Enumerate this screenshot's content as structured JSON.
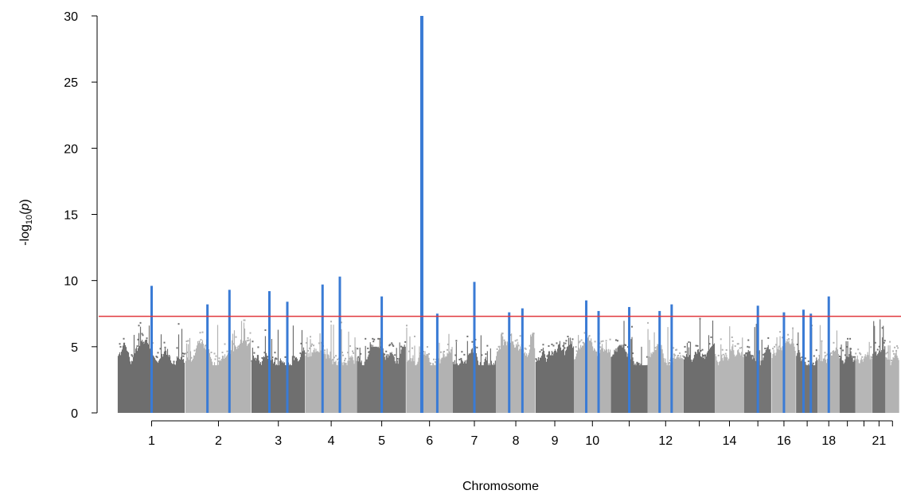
{
  "chart_data": {
    "type": "scatter",
    "subtype": "manhattan",
    "title": "",
    "xlabel": "Chromosome",
    "ylabel": "-log10(p)",
    "ylim": [
      0,
      30
    ],
    "yticks": [
      0,
      5,
      10,
      15,
      20,
      25,
      30
    ],
    "x_tick_labels": [
      "1",
      "2",
      "3",
      "4",
      "5",
      "6",
      "7",
      "8",
      "9",
      "10",
      "12",
      "14",
      "16",
      "18",
      "21"
    ],
    "significance_threshold": 7.3,
    "colors": {
      "chrom_odd": "#6f6f6f",
      "chrom_even": "#b3b3b3",
      "highlight": "#3a7bd5",
      "threshold": "#e0393e"
    },
    "chromosomes": [
      {
        "chr": "1",
        "max": 6.8
      },
      {
        "chr": "2",
        "max": 7.0
      },
      {
        "chr": "3",
        "max": 6.6
      },
      {
        "chr": "4",
        "max": 6.9
      },
      {
        "chr": "5",
        "max": 5.6
      },
      {
        "chr": "6",
        "max": 6.6
      },
      {
        "chr": "7",
        "max": 6.2
      },
      {
        "chr": "8",
        "max": 6.0
      },
      {
        "chr": "9",
        "max": 5.8
      },
      {
        "chr": "10",
        "max": 6.4
      },
      {
        "chr": "11",
        "max": 7.0
      },
      {
        "chr": "12",
        "max": 6.8
      },
      {
        "chr": "13",
        "max": 7.4
      },
      {
        "chr": "14",
        "max": 6.6
      },
      {
        "chr": "15",
        "max": 7.0
      },
      {
        "chr": "16",
        "max": 6.4
      },
      {
        "chr": "17",
        "max": 7.6
      },
      {
        "chr": "18",
        "max": 6.8
      },
      {
        "chr": "19",
        "max": 5.6
      },
      {
        "chr": "20",
        "max": 5.8
      },
      {
        "chr": "21",
        "max": 7.3
      },
      {
        "chr": "22",
        "max": 5.8
      }
    ],
    "peaks": [
      {
        "chr": "1",
        "peak": 9.6
      },
      {
        "chr": "2",
        "peak": 8.2
      },
      {
        "chr": "2",
        "peak": 9.3
      },
      {
        "chr": "3",
        "peak": 9.2
      },
      {
        "chr": "3",
        "peak": 8.4
      },
      {
        "chr": "4",
        "peak": 9.7
      },
      {
        "chr": "4",
        "peak": 10.3
      },
      {
        "chr": "5",
        "peak": 8.8
      },
      {
        "chr": "6",
        "peak": 30.0
      },
      {
        "chr": "6",
        "peak": 7.5
      },
      {
        "chr": "7",
        "peak": 9.9
      },
      {
        "chr": "8",
        "peak": 7.6
      },
      {
        "chr": "8",
        "peak": 7.9
      },
      {
        "chr": "10",
        "peak": 8.5
      },
      {
        "chr": "10",
        "peak": 7.7
      },
      {
        "chr": "11",
        "peak": 8.0
      },
      {
        "chr": "12",
        "peak": 7.7
      },
      {
        "chr": "12",
        "peak": 8.2
      },
      {
        "chr": "15",
        "peak": 8.1
      },
      {
        "chr": "16",
        "peak": 7.6
      },
      {
        "chr": "17",
        "peak": 7.8
      },
      {
        "chr": "17",
        "peak": 7.5
      },
      {
        "chr": "18",
        "peak": 8.8
      }
    ]
  }
}
